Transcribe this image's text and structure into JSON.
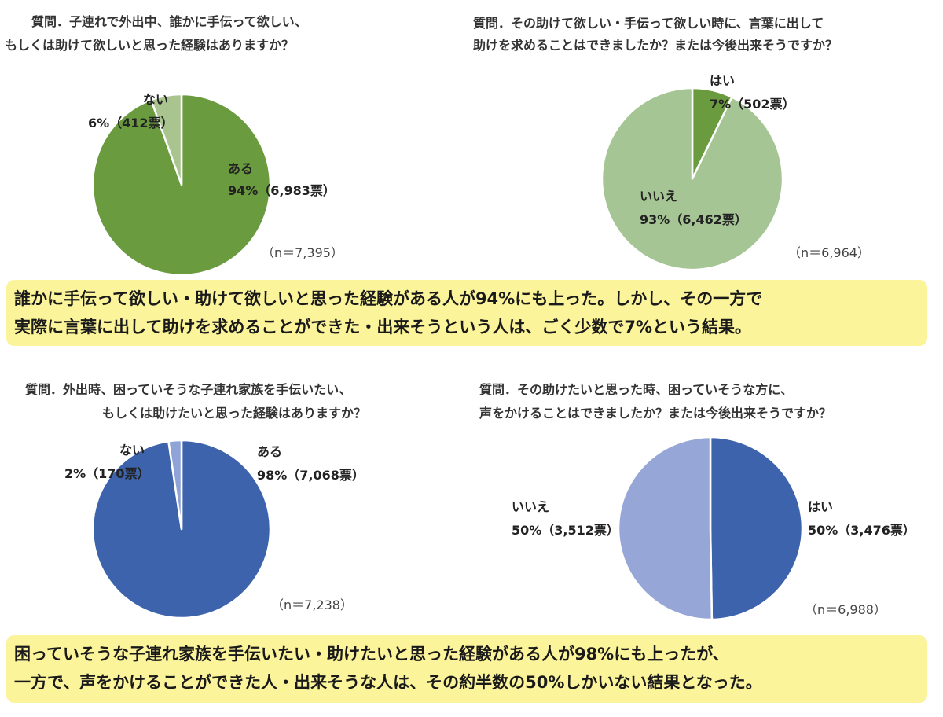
{
  "chart_data": [
    {
      "type": "pie",
      "title": "質問．子連れで外出中、誰かに手伝って欲しい、\nもしくは助けて欲しいと思った経験はありますか？",
      "title_lines": [
        "質問．子連れで外出中、誰かに手伝って欲しい、",
        "もしくは助けて欲しいと思った経験はありますか？"
      ],
      "n_label": "（n＝7,395）",
      "slices": [
        {
          "name": "ある",
          "percent_label": "94%（6,983票）",
          "value": 6983,
          "color": "#6b9b3f"
        },
        {
          "name": "ない",
          "percent_label": "6%（412票）",
          "value": 412,
          "color": "#a9c48f"
        }
      ]
    },
    {
      "type": "pie",
      "title_lines": [
        "質問．その助けて欲しい・手伝って欲しい時に、言葉に出して",
        "助けを求めることはできましたか？または今後出来そうですか？"
      ],
      "n_label": "（n＝6,964）",
      "slices": [
        {
          "name": "はい",
          "percent_label": "7%（502票）",
          "value": 502,
          "color": "#6b9b3f"
        },
        {
          "name": "いいえ",
          "percent_label": "93%（6,462票）",
          "value": 6462,
          "color": "#a6c595"
        }
      ]
    },
    {
      "type": "pie",
      "title_lines": [
        "質問．外出時、困っていそうな子連れ家族を手伝いたい、",
        "もしくは助けたいと思った経験はありますか？"
      ],
      "n_label": "（n＝7,238）",
      "slices": [
        {
          "name": "ある",
          "percent_label": "98%（7,068票）",
          "value": 7068,
          "color": "#3e63ad"
        },
        {
          "name": "ない",
          "percent_label": "2%（170票）",
          "value": 170,
          "color": "#8fa3d6"
        }
      ]
    },
    {
      "type": "pie",
      "title_lines": [
        "質問．その助けたいと思った時、困っていそうな方に、",
        "声をかけることはできましたか？または今後出来そうですか？"
      ],
      "n_label": "（n＝6,988）",
      "slices": [
        {
          "name": "はい",
          "percent_label": "50%（3,476票）",
          "value": 3476,
          "color": "#3e63ad"
        },
        {
          "name": "いいえ",
          "percent_label": "50%（3,512票）",
          "value": 3512,
          "color": "#95a6d7"
        }
      ]
    }
  ],
  "summaries": [
    [
      "誰かに手伝って欲しい・助けて欲しいと思った経験がある人が94%にも上った。しかし、その一方で",
      "実際に言葉に出して助けを求めることができた・出来そうという人は、ごく少数で7%という結果。"
    ],
    [
      "困っていそうな子連れ家族を手伝いたい・助けたいと思った経験がある人が98%にも上ったが、",
      "一方で、声をかけることができた人・出来そうな人は、その約半数の50%しかいない結果となった。"
    ]
  ]
}
